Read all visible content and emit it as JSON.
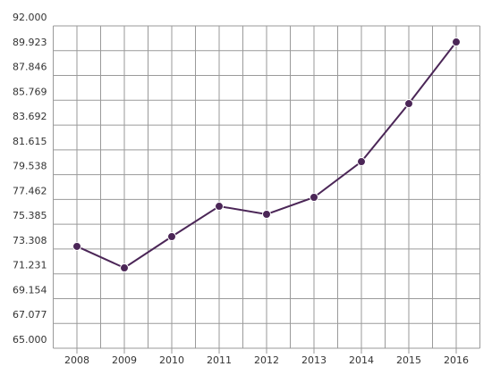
{
  "chart_data": {
    "type": "line",
    "categories": [
      "2008",
      "2009",
      "2010",
      "2011",
      "2012",
      "2013",
      "2014",
      "2015",
      "2016"
    ],
    "values": [
      73.53,
      71.73,
      74.35,
      76.89,
      76.22,
      77.64,
      80.63,
      85.49,
      90.65
    ],
    "color": "#4b2657",
    "ylim": [
      65,
      92
    ],
    "yticks": [
      {
        "value": 65,
        "label": "65.000"
      },
      67.077,
      69.154,
      71.231,
      73.308,
      75.385,
      77.462,
      79.538,
      81.615,
      83.692,
      85.769,
      87.846,
      89.923,
      {
        "value": 92,
        "label": "92.000"
      }
    ],
    "grid": true
  }
}
